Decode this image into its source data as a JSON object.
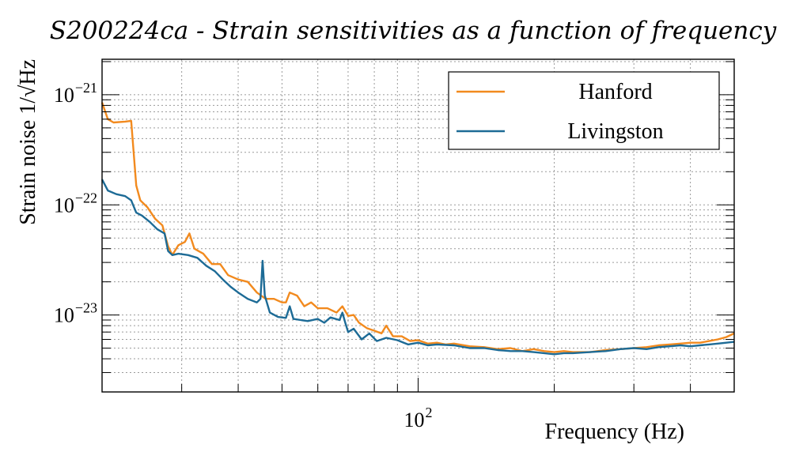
{
  "chart_data": {
    "type": "line",
    "title": "S200224ca - Strain sensitivities as a function of frequency",
    "xlabel": "Frequency (Hz)",
    "ylabel": "Strain noise 1/√Hz",
    "xscale": "log",
    "yscale": "log",
    "xlim": [
      20,
      500
    ],
    "ylim": [
      2e-24,
      2.1e-21
    ],
    "grid": true,
    "legend_position": "top-right",
    "x_ticks": [
      {
        "base": "10",
        "exp": "2",
        "value": 100
      }
    ],
    "y_ticks": [
      {
        "base": "10",
        "exp": "−21",
        "value": 1e-21
      },
      {
        "base": "10",
        "exp": "−22",
        "value": 1e-22
      },
      {
        "base": "10",
        "exp": "−23",
        "value": 1e-23
      }
    ],
    "series": [
      {
        "name": "Hanford",
        "color": "#f28a1e",
        "points": [
          [
            20,
            8.5e-22
          ],
          [
            20.6,
            6e-22
          ],
          [
            21.2,
            5.6e-22
          ],
          [
            22.5,
            5.7e-22
          ],
          [
            23.2,
            5.8e-22
          ],
          [
            23.8,
            1.5e-22
          ],
          [
            24.3,
            1.1e-22
          ],
          [
            25.2,
            9.5e-23
          ],
          [
            26.2,
            7.5e-23
          ],
          [
            27.2,
            6.5e-23
          ],
          [
            28.0,
            4.2e-23
          ],
          [
            28.6,
            3.5e-23
          ],
          [
            29.5,
            4.3e-23
          ],
          [
            30.5,
            4.6e-23
          ],
          [
            31.2,
            5.5e-23
          ],
          [
            32.0,
            4e-23
          ],
          [
            33.5,
            3.6e-23
          ],
          [
            35.0,
            2.9e-23
          ],
          [
            36.5,
            2.9e-23
          ],
          [
            38.0,
            2.3e-23
          ],
          [
            40.0,
            2.1e-23
          ],
          [
            42.0,
            2e-23
          ],
          [
            44.0,
            1.6e-23
          ],
          [
            46.0,
            1.4e-23
          ],
          [
            48.0,
            1.4e-23
          ],
          [
            50.0,
            1.3e-23
          ],
          [
            51.0,
            1.3e-23
          ],
          [
            52.0,
            1.6e-23
          ],
          [
            54.0,
            1.5e-23
          ],
          [
            56.0,
            1.2e-23
          ],
          [
            58.0,
            1.3e-23
          ],
          [
            60.0,
            1.15e-23
          ],
          [
            63.0,
            1.15e-23
          ],
          [
            66.0,
            1.05e-23
          ],
          [
            68.0,
            1.2e-23
          ],
          [
            70.0,
            9.8e-24
          ],
          [
            72.0,
            1e-23
          ],
          [
            74.0,
            8.5e-24
          ],
          [
            77.0,
            7.6e-24
          ],
          [
            80.0,
            7.2e-24
          ],
          [
            83.0,
            6.8e-24
          ],
          [
            85.0,
            8e-24
          ],
          [
            88.0,
            6.4e-24
          ],
          [
            92.0,
            6.4e-24
          ],
          [
            96.0,
            5.8e-24
          ],
          [
            100,
            5.9e-24
          ],
          [
            105,
            5.5e-24
          ],
          [
            110,
            5.6e-24
          ],
          [
            115,
            5.4e-24
          ],
          [
            120,
            5.5e-24
          ],
          [
            130,
            5.2e-24
          ],
          [
            140,
            5.1e-24
          ],
          [
            150,
            4.9e-24
          ],
          [
            160,
            5e-24
          ],
          [
            170,
            4.7e-24
          ],
          [
            180,
            4.9e-24
          ],
          [
            190,
            4.7e-24
          ],
          [
            200,
            4.6e-24
          ],
          [
            210,
            4.7e-24
          ],
          [
            220,
            4.6e-24
          ],
          [
            240,
            4.6e-24
          ],
          [
            260,
            4.8e-24
          ],
          [
            280,
            4.9e-24
          ],
          [
            300,
            5e-24
          ],
          [
            320,
            5.1e-24
          ],
          [
            340,
            5.3e-24
          ],
          [
            360,
            5.4e-24
          ],
          [
            380,
            5.5e-24
          ],
          [
            400,
            5.6e-24
          ],
          [
            420,
            5.6e-24
          ],
          [
            440,
            5.8e-24
          ],
          [
            460,
            6e-24
          ],
          [
            480,
            6.3e-24
          ],
          [
            500,
            6.8e-24
          ]
        ]
      },
      {
        "name": "Livingston",
        "color": "#1d6b96",
        "points": [
          [
            20,
            1.7e-22
          ],
          [
            20.6,
            1.35e-22
          ],
          [
            21.5,
            1.25e-22
          ],
          [
            22.5,
            1.2e-22
          ],
          [
            23.2,
            1.1e-22
          ],
          [
            23.8,
            8.5e-23
          ],
          [
            24.5,
            8e-23
          ],
          [
            25.5,
            7e-23
          ],
          [
            26.5,
            6e-23
          ],
          [
            27.5,
            5.5e-23
          ],
          [
            28.0,
            3.8e-23
          ],
          [
            28.6,
            3.5e-23
          ],
          [
            29.5,
            3.6e-23
          ],
          [
            31.0,
            3.5e-23
          ],
          [
            32.5,
            3.3e-23
          ],
          [
            34.0,
            2.8e-23
          ],
          [
            35.5,
            2.5e-23
          ],
          [
            37.0,
            2.1e-23
          ],
          [
            38.5,
            1.8e-23
          ],
          [
            40.0,
            1.6e-23
          ],
          [
            42.0,
            1.4e-23
          ],
          [
            44.0,
            1.3e-23
          ],
          [
            44.8,
            1.4e-23
          ],
          [
            45.3,
            3.1e-23
          ],
          [
            45.8,
            1.5e-23
          ],
          [
            47.0,
            1.05e-23
          ],
          [
            49.0,
            9.6e-24
          ],
          [
            51.0,
            9.4e-24
          ],
          [
            52.0,
            1.2e-23
          ],
          [
            53.0,
            9.2e-24
          ],
          [
            55.0,
            9e-24
          ],
          [
            57.0,
            8.8e-24
          ],
          [
            60.0,
            9.2e-24
          ],
          [
            62.0,
            8.5e-24
          ],
          [
            64.0,
            9.5e-24
          ],
          [
            67.0,
            9e-24
          ],
          [
            68.0,
            1.05e-23
          ],
          [
            69.0,
            8.5e-24
          ],
          [
            70.0,
            7e-24
          ],
          [
            72.0,
            7.5e-24
          ],
          [
            75.0,
            6e-24
          ],
          [
            78.0,
            6.8e-24
          ],
          [
            81.0,
            5.8e-24
          ],
          [
            85.0,
            6.2e-24
          ],
          [
            90.0,
            5.9e-24
          ],
          [
            95.0,
            5.4e-24
          ],
          [
            100,
            5.6e-24
          ],
          [
            105,
            5.3e-24
          ],
          [
            110,
            5.4e-24
          ],
          [
            120,
            5.3e-24
          ],
          [
            130,
            5e-24
          ],
          [
            140,
            5e-24
          ],
          [
            150,
            4.8e-24
          ],
          [
            160,
            4.7e-24
          ],
          [
            170,
            4.7e-24
          ],
          [
            180,
            4.6e-24
          ],
          [
            190,
            4.5e-24
          ],
          [
            200,
            4.4e-24
          ],
          [
            210,
            4.5e-24
          ],
          [
            220,
            4.5e-24
          ],
          [
            240,
            4.6e-24
          ],
          [
            260,
            4.7e-24
          ],
          [
            280,
            4.9e-24
          ],
          [
            300,
            5e-24
          ],
          [
            320,
            4.9e-24
          ],
          [
            340,
            5.1e-24
          ],
          [
            360,
            5.2e-24
          ],
          [
            380,
            5.3e-24
          ],
          [
            400,
            5.2e-24
          ],
          [
            420,
            5.3e-24
          ],
          [
            440,
            5.4e-24
          ],
          [
            460,
            5.5e-24
          ],
          [
            480,
            5.6e-24
          ],
          [
            500,
            5.7e-24
          ]
        ]
      }
    ]
  }
}
